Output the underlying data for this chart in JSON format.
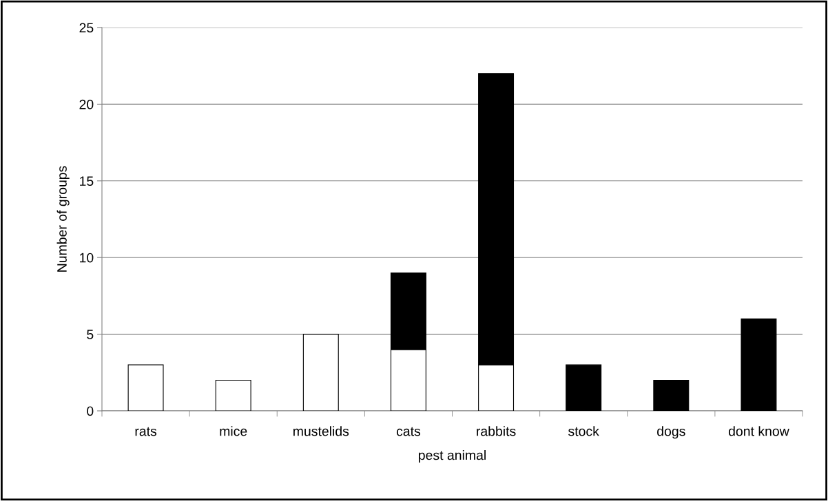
{
  "chart_data": {
    "type": "bar",
    "stacked": true,
    "xlabel": "pest animal",
    "ylabel": "Number of groups",
    "categories": [
      "rats",
      "mice",
      "mustelids",
      "cats",
      "rabbits",
      "stock",
      "dogs",
      "dont know"
    ],
    "series": [
      {
        "color": "#ffffff",
        "values": [
          3,
          2,
          5,
          4,
          3,
          null,
          null,
          null
        ]
      },
      {
        "color": "#000000",
        "values": [
          null,
          null,
          null,
          5,
          19,
          3,
          2,
          6
        ]
      }
    ],
    "ylim": [
      0,
      25
    ],
    "yticks": [
      0,
      5,
      10,
      15,
      20,
      25
    ],
    "grid": "y",
    "legend": false
  }
}
